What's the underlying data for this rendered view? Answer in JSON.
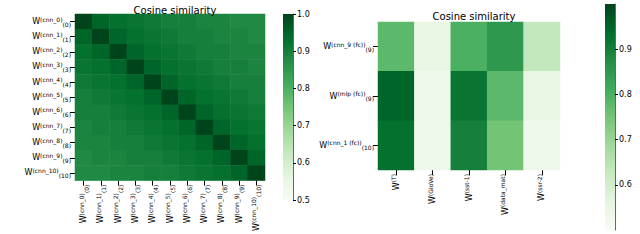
{
  "chart_data": [
    {
      "type": "heatmap",
      "title": "Cosine similarity",
      "rows": [
        {
          "base": "W",
          "sup": "(cnn_0)",
          "sub": "(0)"
        },
        {
          "base": "W",
          "sup": "(cnn_1)",
          "sub": "(1)"
        },
        {
          "base": "W",
          "sup": "(cnn_2)",
          "sub": "(2)"
        },
        {
          "base": "W",
          "sup": "(cnn_3)",
          "sub": "(3)"
        },
        {
          "base": "W",
          "sup": "(cnn_4)",
          "sub": "(4)"
        },
        {
          "base": "W",
          "sup": "(cnn_5)",
          "sub": "(5)"
        },
        {
          "base": "W",
          "sup": "(cnn_6)",
          "sub": "(6)"
        },
        {
          "base": "W",
          "sup": "(cnn_7)",
          "sub": "(7)"
        },
        {
          "base": "W",
          "sup": "(cnn_8)",
          "sub": "(8)"
        },
        {
          "base": "W",
          "sup": "(cnn_9)",
          "sub": "(9)"
        },
        {
          "base": "W",
          "sup": "(cnn_10)",
          "sub": "(10)"
        }
      ],
      "columns": [
        {
          "base": "W",
          "sup": "(cnn_0)",
          "sub": "(0)"
        },
        {
          "base": "W",
          "sup": "(cnn_1)",
          "sub": "(1)"
        },
        {
          "base": "W",
          "sup": "(cnn_2)",
          "sub": "(2)"
        },
        {
          "base": "W",
          "sup": "(cnn_3)",
          "sub": "(3)"
        },
        {
          "base": "W",
          "sup": "(cnn_4)",
          "sub": "(4)"
        },
        {
          "base": "W",
          "sup": "(cnn_5)",
          "sub": "(5)"
        },
        {
          "base": "W",
          "sup": "(cnn_6)",
          "sub": "(6)"
        },
        {
          "base": "W",
          "sup": "(cnn_7)",
          "sub": "(7)"
        },
        {
          "base": "W",
          "sup": "(cnn_8)",
          "sub": "(8)"
        },
        {
          "base": "W",
          "sup": "(cnn_9)",
          "sub": "(9)"
        },
        {
          "base": "W",
          "sup": "(cnn_10)",
          "sub": "(10)"
        }
      ],
      "cells": [
        [
          1.0,
          0.95,
          0.93,
          0.92,
          0.91,
          0.9,
          0.9,
          0.89,
          0.89,
          0.88,
          0.88
        ],
        [
          0.95,
          1.0,
          0.95,
          0.93,
          0.92,
          0.91,
          0.9,
          0.9,
          0.89,
          0.89,
          0.88
        ],
        [
          0.93,
          0.95,
          1.0,
          0.95,
          0.93,
          0.92,
          0.91,
          0.9,
          0.9,
          0.89,
          0.89
        ],
        [
          0.92,
          0.93,
          0.95,
          1.0,
          0.95,
          0.93,
          0.92,
          0.91,
          0.9,
          0.9,
          0.89
        ],
        [
          0.91,
          0.92,
          0.93,
          0.95,
          1.0,
          0.95,
          0.93,
          0.92,
          0.91,
          0.9,
          0.9
        ],
        [
          0.9,
          0.91,
          0.92,
          0.93,
          0.95,
          1.0,
          0.95,
          0.93,
          0.92,
          0.91,
          0.9
        ],
        [
          0.9,
          0.9,
          0.91,
          0.92,
          0.93,
          0.95,
          1.0,
          0.95,
          0.93,
          0.92,
          0.91
        ],
        [
          0.89,
          0.9,
          0.9,
          0.91,
          0.92,
          0.93,
          0.95,
          1.0,
          0.95,
          0.93,
          0.92
        ],
        [
          0.89,
          0.89,
          0.9,
          0.9,
          0.91,
          0.92,
          0.93,
          0.95,
          1.0,
          0.95,
          0.93
        ],
        [
          0.88,
          0.89,
          0.89,
          0.9,
          0.9,
          0.91,
          0.92,
          0.93,
          0.95,
          1.0,
          0.95
        ],
        [
          0.88,
          0.88,
          0.89,
          0.89,
          0.9,
          0.9,
          0.91,
          0.92,
          0.93,
          0.95,
          1.0
        ]
      ],
      "color_range": [
        0.5,
        1.0
      ],
      "color_ticks": [
        0.5,
        0.6,
        0.7,
        0.8,
        0.9,
        {
          "value": 1.0,
          "label": "1.0"
        }
      ],
      "colors": [
        "#f7fcf5",
        "#e5f5e0",
        "#c7e9c0",
        "#a1d99b",
        "#74c476",
        "#41ab5d",
        "#238b45",
        "#006d2c",
        "#00441b"
      ]
    },
    {
      "type": "heatmap",
      "title": "Cosine similarity",
      "rows": [
        {
          "base": "W",
          "sup": "(cnn_9 (fc))",
          "sub": "(9)"
        },
        {
          "base": "W",
          "sup": "(mlp (fc))",
          "sub": "(9)"
        },
        {
          "base": "W",
          "sup": "(cnn_1 (fc))",
          "sub": "(10)"
        }
      ],
      "columns": [
        {
          "base": "W",
          "sup": "(T)"
        },
        {
          "base": "W",
          "sup": "(GloVe)"
        },
        {
          "base": "W",
          "sup": "(sst-1)"
        },
        {
          "base": "W",
          "sup": "(data_mat)"
        },
        {
          "base": "W",
          "sup": "(ssr-2)"
        }
      ],
      "cells": [
        [
          0.78,
          0.55,
          0.8,
          0.85,
          0.63
        ],
        [
          0.95,
          0.53,
          0.92,
          0.78,
          0.55
        ],
        [
          0.93,
          0.53,
          0.9,
          0.75,
          0.53
        ]
      ],
      "color_range": [
        0.5,
        1.0
      ],
      "color_ticks": [
        0.6,
        0.7,
        0.8,
        0.9
      ],
      "colors": [
        "#f7fcf5",
        "#e5f5e0",
        "#c7e9c0",
        "#a1d99b",
        "#74c476",
        "#41ab5d",
        "#238b45",
        "#006d2c",
        "#00441b"
      ]
    }
  ]
}
